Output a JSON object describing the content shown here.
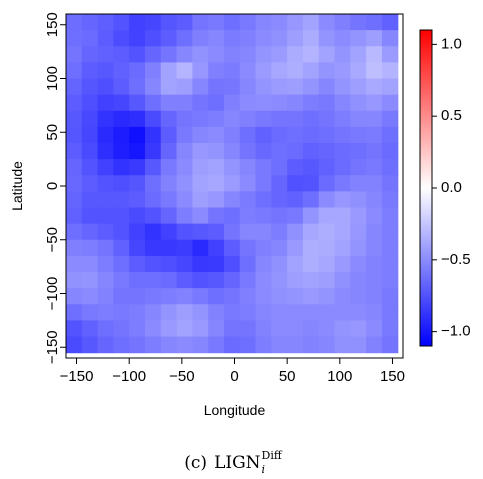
{
  "chart_data": {
    "type": "heatmap",
    "title": "",
    "xlabel": "Longitude",
    "ylabel": "Latitude",
    "xlim": [
      -160,
      160
    ],
    "ylim": [
      -160,
      160
    ],
    "x_ticks": [
      -150,
      -100,
      -50,
      0,
      50,
      100,
      150
    ],
    "x_tick_labels": [
      "−150",
      "−100",
      "−50",
      "0",
      "50",
      "100",
      "150"
    ],
    "y_ticks": [
      -150,
      -100,
      -50,
      0,
      50,
      100,
      150
    ],
    "y_tick_labels": [
      "−150",
      "−100",
      "−50",
      "0",
      "50",
      "100",
      "150"
    ],
    "colorbar": {
      "min": -1.1,
      "max": 1.1,
      "ticks": [
        1.0,
        0.5,
        0.0,
        -0.5,
        -1.0
      ],
      "tick_labels": [
        "1.0",
        "0.5",
        "0.0",
        "−0.5",
        "−1.0"
      ],
      "colors": {
        "low": "#0000ff",
        "mid": "#ffffff",
        "high": "#ff0000"
      }
    },
    "grid": false,
    "legend_position": "right",
    "cells": {
      "x_centers": [
        -152.5,
        -137.5,
        -122.5,
        -107.5,
        -92.5,
        -77.5,
        -62.5,
        -47.5,
        -32.5,
        -17.5,
        -2.5,
        12.5,
        27.5,
        42.5,
        57.5,
        72.5,
        87.5,
        102.5,
        117.5,
        132.5,
        147.5
      ],
      "y_centers": [
        152.5,
        137.5,
        122.5,
        107.5,
        92.5,
        77.5,
        62.5,
        47.5,
        32.5,
        17.5,
        2.5,
        -12.5,
        -27.5,
        -42.5,
        -57.5,
        -72.5,
        -87.5,
        -102.5,
        -117.5,
        -132.5,
        -147.5
      ],
      "values": [
        [
          -0.63,
          -0.66,
          -0.69,
          -0.74,
          -0.82,
          -0.8,
          -0.73,
          -0.7,
          -0.6,
          -0.58,
          -0.62,
          -0.58,
          -0.52,
          -0.5,
          -0.45,
          -0.4,
          -0.5,
          -0.55,
          -0.6,
          -0.62,
          -0.68
        ],
        [
          -0.62,
          -0.64,
          -0.7,
          -0.77,
          -0.81,
          -0.76,
          -0.7,
          -0.62,
          -0.55,
          -0.52,
          -0.57,
          -0.55,
          -0.5,
          -0.48,
          -0.42,
          -0.36,
          -0.46,
          -0.5,
          -0.46,
          -0.42,
          -0.52
        ],
        [
          -0.6,
          -0.66,
          -0.68,
          -0.7,
          -0.74,
          -0.66,
          -0.6,
          -0.52,
          -0.47,
          -0.5,
          -0.54,
          -0.52,
          -0.46,
          -0.43,
          -0.36,
          -0.33,
          -0.4,
          -0.46,
          -0.4,
          -0.3,
          -0.43
        ],
        [
          -0.62,
          -0.7,
          -0.72,
          -0.68,
          -0.64,
          -0.55,
          -0.4,
          -0.32,
          -0.45,
          -0.55,
          -0.57,
          -0.5,
          -0.43,
          -0.38,
          -0.35,
          -0.4,
          -0.46,
          -0.44,
          -0.37,
          -0.28,
          -0.33
        ],
        [
          -0.67,
          -0.73,
          -0.76,
          -0.7,
          -0.62,
          -0.52,
          -0.4,
          -0.42,
          -0.52,
          -0.6,
          -0.59,
          -0.52,
          -0.46,
          -0.43,
          -0.42,
          -0.46,
          -0.52,
          -0.46,
          -0.42,
          -0.37,
          -0.4
        ],
        [
          -0.7,
          -0.76,
          -0.82,
          -0.8,
          -0.72,
          -0.62,
          -0.55,
          -0.55,
          -0.6,
          -0.62,
          -0.55,
          -0.5,
          -0.49,
          -0.5,
          -0.52,
          -0.56,
          -0.58,
          -0.52,
          -0.48,
          -0.45,
          -0.5
        ],
        [
          -0.72,
          -0.79,
          -0.88,
          -0.92,
          -0.9,
          -0.78,
          -0.66,
          -0.6,
          -0.58,
          -0.56,
          -0.52,
          -0.55,
          -0.58,
          -0.6,
          -0.6,
          -0.62,
          -0.6,
          -0.56,
          -0.52,
          -0.52,
          -0.58
        ],
        [
          -0.73,
          -0.8,
          -0.92,
          -0.98,
          -1.03,
          -0.88,
          -0.7,
          -0.58,
          -0.52,
          -0.5,
          -0.55,
          -0.62,
          -0.68,
          -0.64,
          -0.62,
          -0.64,
          -0.62,
          -0.6,
          -0.58,
          -0.57,
          -0.62
        ],
        [
          -0.7,
          -0.78,
          -0.9,
          -0.97,
          -1.0,
          -0.86,
          -0.66,
          -0.52,
          -0.45,
          -0.46,
          -0.52,
          -0.6,
          -0.65,
          -0.62,
          -0.64,
          -0.68,
          -0.66,
          -0.64,
          -0.62,
          -0.6,
          -0.64
        ],
        [
          -0.66,
          -0.74,
          -0.82,
          -0.88,
          -0.85,
          -0.72,
          -0.58,
          -0.5,
          -0.42,
          -0.4,
          -0.46,
          -0.52,
          -0.58,
          -0.62,
          -0.7,
          -0.72,
          -0.68,
          -0.64,
          -0.6,
          -0.58,
          -0.62
        ],
        [
          -0.65,
          -0.7,
          -0.74,
          -0.76,
          -0.73,
          -0.62,
          -0.54,
          -0.48,
          -0.4,
          -0.38,
          -0.43,
          -0.5,
          -0.58,
          -0.66,
          -0.75,
          -0.74,
          -0.64,
          -0.58,
          -0.54,
          -0.54,
          -0.6
        ],
        [
          -0.67,
          -0.72,
          -0.72,
          -0.72,
          -0.7,
          -0.64,
          -0.58,
          -0.5,
          -0.42,
          -0.45,
          -0.52,
          -0.57,
          -0.62,
          -0.66,
          -0.68,
          -0.62,
          -0.5,
          -0.45,
          -0.48,
          -0.52,
          -0.58
        ],
        [
          -0.68,
          -0.74,
          -0.74,
          -0.74,
          -0.78,
          -0.74,
          -0.66,
          -0.56,
          -0.5,
          -0.6,
          -0.62,
          -0.56,
          -0.58,
          -0.6,
          -0.58,
          -0.46,
          -0.38,
          -0.38,
          -0.44,
          -0.5,
          -0.56
        ],
        [
          -0.62,
          -0.66,
          -0.7,
          -0.74,
          -0.82,
          -0.88,
          -0.82,
          -0.74,
          -0.72,
          -0.7,
          -0.6,
          -0.52,
          -0.52,
          -0.56,
          -0.48,
          -0.38,
          -0.35,
          -0.38,
          -0.45,
          -0.52,
          -0.56
        ],
        [
          -0.55,
          -0.56,
          -0.6,
          -0.68,
          -0.8,
          -0.86,
          -0.86,
          -0.84,
          -0.92,
          -0.82,
          -0.7,
          -0.6,
          -0.55,
          -0.52,
          -0.44,
          -0.35,
          -0.36,
          -0.4,
          -0.46,
          -0.52,
          -0.56
        ],
        [
          -0.5,
          -0.5,
          -0.56,
          -0.62,
          -0.7,
          -0.74,
          -0.76,
          -0.8,
          -0.86,
          -0.85,
          -0.76,
          -0.62,
          -0.52,
          -0.48,
          -0.4,
          -0.35,
          -0.38,
          -0.44,
          -0.5,
          -0.54,
          -0.56
        ],
        [
          -0.47,
          -0.46,
          -0.52,
          -0.58,
          -0.62,
          -0.62,
          -0.64,
          -0.7,
          -0.74,
          -0.72,
          -0.66,
          -0.58,
          -0.5,
          -0.46,
          -0.42,
          -0.4,
          -0.42,
          -0.48,
          -0.52,
          -0.54,
          -0.56
        ],
        [
          -0.52,
          -0.5,
          -0.54,
          -0.6,
          -0.6,
          -0.58,
          -0.56,
          -0.54,
          -0.58,
          -0.62,
          -0.6,
          -0.55,
          -0.5,
          -0.48,
          -0.46,
          -0.44,
          -0.46,
          -0.5,
          -0.52,
          -0.54,
          -0.58
        ],
        [
          -0.62,
          -0.58,
          -0.56,
          -0.58,
          -0.56,
          -0.52,
          -0.46,
          -0.42,
          -0.46,
          -0.54,
          -0.58,
          -0.56,
          -0.52,
          -0.5,
          -0.5,
          -0.5,
          -0.5,
          -0.5,
          -0.5,
          -0.52,
          -0.58
        ],
        [
          -0.74,
          -0.68,
          -0.62,
          -0.6,
          -0.56,
          -0.5,
          -0.44,
          -0.4,
          -0.44,
          -0.52,
          -0.6,
          -0.6,
          -0.54,
          -0.5,
          -0.5,
          -0.52,
          -0.5,
          -0.46,
          -0.45,
          -0.5,
          -0.58
        ],
        [
          -0.78,
          -0.72,
          -0.66,
          -0.62,
          -0.6,
          -0.56,
          -0.52,
          -0.5,
          -0.52,
          -0.58,
          -0.64,
          -0.62,
          -0.56,
          -0.52,
          -0.52,
          -0.54,
          -0.52,
          -0.48,
          -0.48,
          -0.54,
          -0.6
        ]
      ]
    }
  },
  "caption": {
    "prefix": "(c)",
    "main": "LIGN",
    "superscript": "Diff",
    "subscript": "i"
  }
}
